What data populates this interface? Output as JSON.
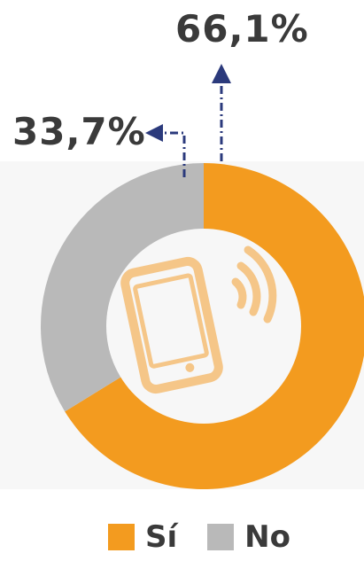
{
  "chart_data": {
    "type": "pie",
    "subtype": "donut",
    "title": "",
    "series": [
      {
        "name": "Sí",
        "value": 66.1,
        "label": "66,1%",
        "color": "#f39b1f"
      },
      {
        "name": "No",
        "value": 33.7,
        "label": "33,7%",
        "color": "#b9b9b9"
      }
    ],
    "center_icon": "smartphone-signal-icon",
    "annotation_color": "#2b3a7c",
    "label_text_color": "#3a3a3a"
  },
  "legend": {
    "items": [
      {
        "label": "Sí",
        "color": "#f39b1f"
      },
      {
        "label": "No",
        "color": "#b9b9b9"
      }
    ]
  }
}
